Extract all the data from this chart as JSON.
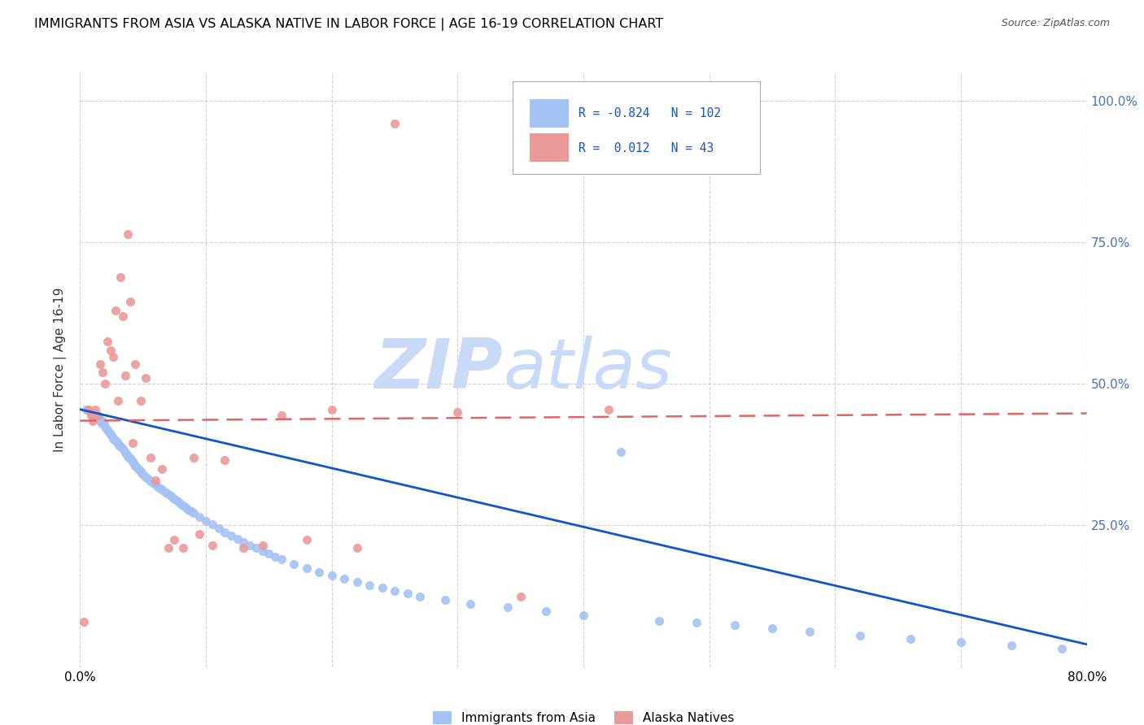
{
  "title": "IMMIGRANTS FROM ASIA VS ALASKA NATIVE IN LABOR FORCE | AGE 16-19 CORRELATION CHART",
  "source": "Source: ZipAtlas.com",
  "ylabel": "In Labor Force | Age 16-19",
  "right_yticks": [
    "100.0%",
    "75.0%",
    "50.0%",
    "25.0%"
  ],
  "right_ytick_vals": [
    1.0,
    0.75,
    0.5,
    0.25
  ],
  "xlim": [
    0.0,
    0.8
  ],
  "ylim": [
    0.0,
    1.05
  ],
  "blue_color": "#a4c2f4",
  "pink_color": "#ea9999",
  "blue_line_color": "#1155cc",
  "pink_line_color": "#e06666",
  "legend_blue_R": "-0.824",
  "legend_blue_N": "102",
  "legend_pink_R": "0.012",
  "legend_pink_N": "43",
  "watermark_zip": "ZIP",
  "watermark_atlas": "atlas",
  "watermark_color": "#c9daf8",
  "blue_scatter_x": [
    0.005,
    0.008,
    0.01,
    0.012,
    0.014,
    0.015,
    0.016,
    0.017,
    0.018,
    0.019,
    0.02,
    0.021,
    0.022,
    0.023,
    0.024,
    0.025,
    0.026,
    0.027,
    0.028,
    0.029,
    0.03,
    0.031,
    0.032,
    0.033,
    0.034,
    0.035,
    0.036,
    0.037,
    0.038,
    0.039,
    0.04,
    0.041,
    0.042,
    0.043,
    0.044,
    0.045,
    0.046,
    0.047,
    0.048,
    0.049,
    0.05,
    0.052,
    0.054,
    0.056,
    0.058,
    0.06,
    0.062,
    0.064,
    0.066,
    0.068,
    0.07,
    0.072,
    0.074,
    0.076,
    0.078,
    0.08,
    0.082,
    0.084,
    0.086,
    0.088,
    0.09,
    0.095,
    0.1,
    0.105,
    0.11,
    0.115,
    0.12,
    0.125,
    0.13,
    0.135,
    0.14,
    0.145,
    0.15,
    0.155,
    0.16,
    0.17,
    0.18,
    0.19,
    0.2,
    0.21,
    0.22,
    0.23,
    0.24,
    0.25,
    0.26,
    0.27,
    0.29,
    0.31,
    0.34,
    0.37,
    0.4,
    0.43,
    0.46,
    0.49,
    0.52,
    0.55,
    0.58,
    0.62,
    0.66,
    0.7,
    0.74,
    0.78
  ],
  "blue_scatter_y": [
    0.455,
    0.45,
    0.445,
    0.44,
    0.445,
    0.44,
    0.435,
    0.43,
    0.435,
    0.43,
    0.425,
    0.42,
    0.418,
    0.415,
    0.412,
    0.408,
    0.405,
    0.402,
    0.4,
    0.398,
    0.395,
    0.392,
    0.39,
    0.388,
    0.385,
    0.382,
    0.378,
    0.375,
    0.372,
    0.37,
    0.368,
    0.365,
    0.362,
    0.358,
    0.355,
    0.352,
    0.35,
    0.348,
    0.345,
    0.342,
    0.34,
    0.336,
    0.332,
    0.328,
    0.325,
    0.322,
    0.318,
    0.315,
    0.312,
    0.308,
    0.305,
    0.302,
    0.298,
    0.295,
    0.292,
    0.288,
    0.285,
    0.282,
    0.278,
    0.275,
    0.272,
    0.265,
    0.258,
    0.252,
    0.245,
    0.238,
    0.232,
    0.226,
    0.22,
    0.215,
    0.21,
    0.205,
    0.2,
    0.195,
    0.19,
    0.182,
    0.175,
    0.168,
    0.162,
    0.156,
    0.15,
    0.145,
    0.14,
    0.135,
    0.13,
    0.125,
    0.118,
    0.112,
    0.105,
    0.098,
    0.092,
    0.38,
    0.082,
    0.078,
    0.074,
    0.068,
    0.062,
    0.056,
    0.05,
    0.044,
    0.038,
    0.032
  ],
  "pink_scatter_x": [
    0.003,
    0.007,
    0.009,
    0.01,
    0.012,
    0.014,
    0.016,
    0.018,
    0.02,
    0.022,
    0.024,
    0.026,
    0.028,
    0.03,
    0.032,
    0.034,
    0.036,
    0.038,
    0.04,
    0.042,
    0.044,
    0.048,
    0.052,
    0.056,
    0.06,
    0.065,
    0.07,
    0.075,
    0.082,
    0.09,
    0.095,
    0.105,
    0.115,
    0.13,
    0.145,
    0.16,
    0.18,
    0.2,
    0.22,
    0.25,
    0.3,
    0.35,
    0.42
  ],
  "pink_scatter_y": [
    0.08,
    0.455,
    0.445,
    0.435,
    0.455,
    0.445,
    0.535,
    0.52,
    0.5,
    0.575,
    0.56,
    0.548,
    0.63,
    0.47,
    0.688,
    0.62,
    0.515,
    0.765,
    0.645,
    0.395,
    0.535,
    0.47,
    0.51,
    0.37,
    0.33,
    0.35,
    0.21,
    0.225,
    0.21,
    0.37,
    0.235,
    0.215,
    0.365,
    0.21,
    0.215,
    0.445,
    0.225,
    0.455,
    0.21,
    0.96,
    0.45,
    0.125,
    0.455
  ],
  "blue_trend_x": [
    0.0,
    0.8
  ],
  "blue_trend_y": [
    0.455,
    0.04
  ],
  "pink_trend_x": [
    0.0,
    0.8
  ],
  "pink_trend_y": [
    0.435,
    0.448
  ],
  "grid_color": "#d0d0d0",
  "background_color": "#ffffff"
}
